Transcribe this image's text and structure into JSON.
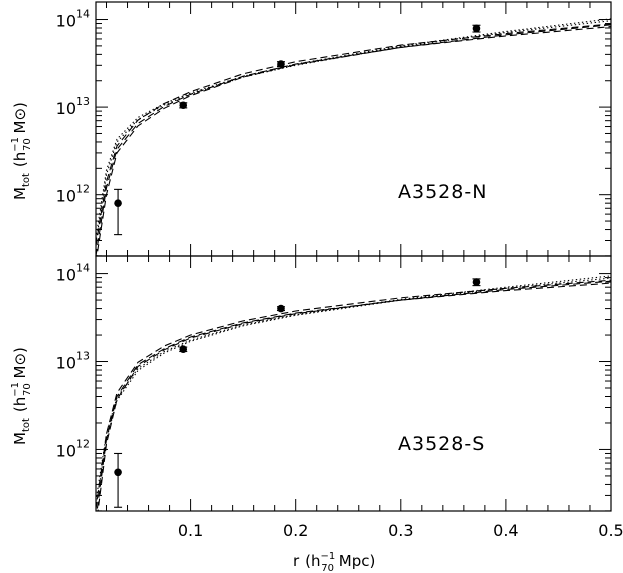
{
  "chart_data": {
    "type": "scatter",
    "xlabel": {
      "main": "r",
      "open": "(h",
      "sub": "70",
      "sup": "−1",
      "close": " Mpc)"
    },
    "ylabel": {
      "main": "M",
      "main_sub": "tot",
      "open": "(h",
      "sub": "70",
      "sup": "−1",
      "mid": " M",
      "sym": "⊙",
      "close": ")"
    },
    "xlim": [
      0.01,
      0.5
    ],
    "ylim_log": [
      11.3,
      14.2
    ],
    "x_ticks": [
      {
        "value": 0.1,
        "label": "0.1"
      },
      {
        "value": 0.2,
        "label": "0.2"
      },
      {
        "value": 0.3,
        "label": "0.3"
      },
      {
        "value": 0.4,
        "label": "0.4"
      },
      {
        "value": 0.5,
        "label": "0.5"
      }
    ],
    "y_ticks": [
      {
        "value": 12,
        "base": "10",
        "exp": "12"
      },
      {
        "value": 13,
        "base": "10",
        "exp": "13"
      },
      {
        "value": 14,
        "base": "10",
        "exp": "14"
      }
    ],
    "panels": [
      {
        "label": "A3528-N",
        "points": [
          {
            "x": 0.031,
            "y": 800000000000.0,
            "ylo": 350000000000.0,
            "yhi": 1150000000000.0
          },
          {
            "x": 0.093,
            "y": 10500000000000.0,
            "ylo": 9800000000000.0,
            "yhi": 11200000000000.0
          },
          {
            "x": 0.186,
            "y": 31000000000000.0,
            "ylo": 29000000000000.0,
            "yhi": 33000000000000.0
          },
          {
            "x": 0.372,
            "y": 79000000000000.0,
            "ylo": 72000000000000.0,
            "yhi": 86000000000000.0
          }
        ],
        "models": [
          {
            "style": "dashed",
            "points": [
              [
                0.01,
                200000000000.0
              ],
              [
                0.02,
                1200000000000.0
              ],
              [
                0.03,
                3300000000000.0
              ],
              [
                0.05,
                6500000000000.0
              ],
              [
                0.075,
                10200000000000.0
              ],
              [
                0.1,
                14000000000000.0
              ],
              [
                0.15,
                22500000000000.0
              ],
              [
                0.2,
                31000000000000.0
              ],
              [
                0.3,
                48000000000000.0
              ],
              [
                0.4,
                65000000000000.0
              ],
              [
                0.5,
                83000000000000.0
              ]
            ]
          },
          {
            "style": "dashed",
            "points": [
              [
                0.01,
                260000000000.0
              ],
              [
                0.02,
                1400000000000.0
              ],
              [
                0.03,
                3600000000000.0
              ],
              [
                0.05,
                7100000000000.0
              ],
              [
                0.075,
                11000000000000.0
              ],
              [
                0.1,
                15000000000000.0
              ],
              [
                0.15,
                24000000000000.0
              ],
              [
                0.2,
                33000000000000.0
              ],
              [
                0.3,
                51000000000000.0
              ],
              [
                0.4,
                69000000000000.0
              ],
              [
                0.5,
                89000000000000.0
              ]
            ]
          },
          {
            "style": "dashed",
            "points": [
              [
                0.01,
                170000000000.0
              ],
              [
                0.02,
                1000000000000.0
              ],
              [
                0.03,
                3000000000000.0
              ],
              [
                0.05,
                6100000000000.0
              ],
              [
                0.075,
                9700000000000.0
              ],
              [
                0.1,
                13500000000000.0
              ],
              [
                0.15,
                22000000000000.0
              ],
              [
                0.2,
                30500000000000.0
              ],
              [
                0.3,
                48000000000000.0
              ],
              [
                0.4,
                67000000000000.0
              ],
              [
                0.5,
                87000000000000.0
              ]
            ]
          },
          {
            "style": "dotted",
            "points": [
              [
                0.01,
                320000000000.0
              ],
              [
                0.02,
                1900000000000.0
              ],
              [
                0.03,
                4300000000000.0
              ],
              [
                0.05,
                7600000000000.0
              ],
              [
                0.075,
                11000000000000.0
              ],
              [
                0.1,
                14500000000000.0
              ],
              [
                0.15,
                22500000000000.0
              ],
              [
                0.2,
                31000000000000.0
              ],
              [
                0.3,
                50000000000000.0
              ],
              [
                0.4,
                73000000000000.0
              ],
              [
                0.5,
                102000000000000.0
              ]
            ]
          },
          {
            "style": "dotted",
            "points": [
              [
                0.01,
                280000000000.0
              ],
              [
                0.02,
                1700000000000.0
              ],
              [
                0.03,
                4000000000000.0
              ],
              [
                0.05,
                7200000000000.0
              ],
              [
                0.075,
                10600000000000.0
              ],
              [
                0.1,
                14000000000000.0
              ],
              [
                0.15,
                22000000000000.0
              ],
              [
                0.2,
                30000000000000.0
              ],
              [
                0.3,
                49000000000000.0
              ],
              [
                0.4,
                71000000000000.0
              ],
              [
                0.5,
                97000000000000.0
              ]
            ]
          }
        ]
      },
      {
        "label": "A3528-S",
        "points": [
          {
            "x": 0.031,
            "y": 550000000000.0,
            "ylo": 220000000000.0,
            "yhi": 900000000000.0
          },
          {
            "x": 0.093,
            "y": 13800000000000.0,
            "ylo": 13000000000000.0,
            "yhi": 14600000000000.0
          },
          {
            "x": 0.186,
            "y": 40000000000000.0,
            "ylo": 38000000000000.0,
            "yhi": 42000000000000.0
          },
          {
            "x": 0.372,
            "y": 80000000000000.0,
            "ylo": 73000000000000.0,
            "yhi": 87000000000000.0
          }
        ],
        "models": [
          {
            "style": "dashed",
            "points": [
              [
                0.01,
                160000000000.0
              ],
              [
                0.02,
                1300000000000.0
              ],
              [
                0.03,
                4000000000000.0
              ],
              [
                0.05,
                9200000000000.0
              ],
              [
                0.075,
                14000000000000.0
              ],
              [
                0.1,
                19000000000000.0
              ],
              [
                0.15,
                27500000000000.0
              ],
              [
                0.2,
                35500000000000.0
              ],
              [
                0.3,
                50000000000000.0
              ],
              [
                0.4,
                64000000000000.0
              ],
              [
                0.5,
                78000000000000.0
              ]
            ]
          },
          {
            "style": "dashed",
            "points": [
              [
                0.01,
                210000000000.0
              ],
              [
                0.02,
                1500000000000.0
              ],
              [
                0.03,
                4400000000000.0
              ],
              [
                0.05,
                9800000000000.0
              ],
              [
                0.075,
                15000000000000.0
              ],
              [
                0.1,
                20000000000000.0
              ],
              [
                0.15,
                29000000000000.0
              ],
              [
                0.2,
                37500000000000.0
              ],
              [
                0.3,
                53000000000000.0
              ],
              [
                0.4,
                68000000000000.0
              ],
              [
                0.5,
                84000000000000.0
              ]
            ]
          },
          {
            "style": "dashed",
            "points": [
              [
                0.01,
                130000000000.0
              ],
              [
                0.02,
                1150000000000.0
              ],
              [
                0.03,
                3700000000000.0
              ],
              [
                0.05,
                8800000000000.0
              ],
              [
                0.075,
                13600000000000.0
              ],
              [
                0.1,
                18500000000000.0
              ],
              [
                0.15,
                27000000000000.0
              ],
              [
                0.2,
                35000000000000.0
              ],
              [
                0.3,
                50000000000000.0
              ],
              [
                0.4,
                66000000000000.0
              ],
              [
                0.5,
                82000000000000.0
              ]
            ]
          },
          {
            "style": "dotted",
            "points": [
              [
                0.01,
                260000000000.0
              ],
              [
                0.02,
                1500000000000.0
              ],
              [
                0.03,
                3900000000000.0
              ],
              [
                0.05,
                8300000000000.0
              ],
              [
                0.075,
                13000000000000.0
              ],
              [
                0.1,
                17500000000000.0
              ],
              [
                0.15,
                26000000000000.0
              ],
              [
                0.2,
                34000000000000.0
              ],
              [
                0.3,
                51000000000000.0
              ],
              [
                0.4,
                70000000000000.0
              ],
              [
                0.5,
                94000000000000.0
              ]
            ]
          },
          {
            "style": "dotted",
            "points": [
              [
                0.01,
                220000000000.0
              ],
              [
                0.02,
                1300000000000.0
              ],
              [
                0.03,
                3600000000000.0
              ],
              [
                0.05,
                7900000000000.0
              ],
              [
                0.075,
                12500000000000.0
              ],
              [
                0.1,
                17000000000000.0
              ],
              [
                0.15,
                25500000000000.0
              ],
              [
                0.2,
                33500000000000.0
              ],
              [
                0.3,
                50000000000000.0
              ],
              [
                0.4,
                68000000000000.0
              ],
              [
                0.5,
                89000000000000.0
              ]
            ]
          }
        ]
      }
    ]
  }
}
